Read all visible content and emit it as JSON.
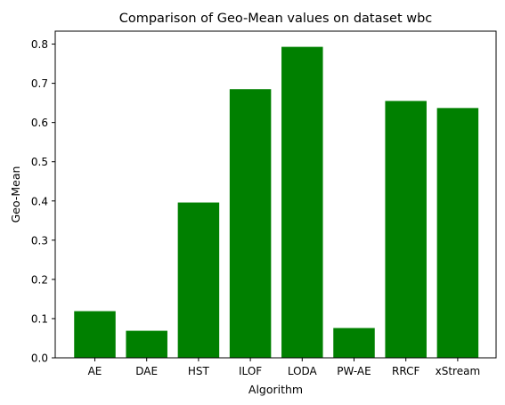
{
  "chart_data": {
    "type": "bar",
    "title": "Comparison of Geo-Mean values on dataset wbc",
    "xlabel": "Algorithm",
    "ylabel": "Geo-Mean",
    "categories": [
      "AE",
      "DAE",
      "HST",
      "ILOF",
      "LODA",
      "PW-AE",
      "RRCF",
      "xStream"
    ],
    "values": [
      0.119,
      0.069,
      0.396,
      0.685,
      0.793,
      0.076,
      0.655,
      0.637
    ],
    "ylim": [
      0,
      0.833
    ],
    "yticks": [
      0.0,
      0.1,
      0.2,
      0.3,
      0.4,
      0.5,
      0.6,
      0.7,
      0.8
    ],
    "ytick_labels": [
      "0.0",
      "0.1",
      "0.2",
      "0.3",
      "0.4",
      "0.5",
      "0.6",
      "0.7",
      "0.8"
    ],
    "bar_color": "#008000",
    "grid": false,
    "legend": "none"
  }
}
